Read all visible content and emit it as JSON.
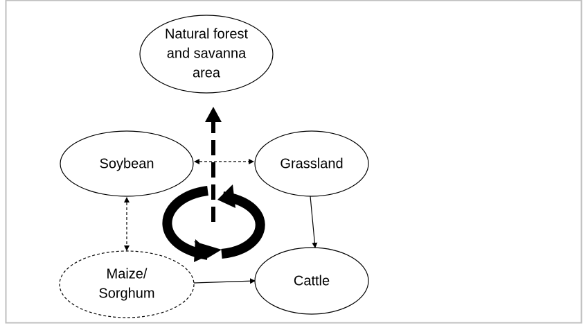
{
  "nodes": [
    {
      "lines": [
        "Natural forest",
        "and savanna",
        "area"
      ]
    },
    {
      "lines": [
        "Soybean"
      ]
    },
    {
      "lines": [
        "Grassland"
      ]
    },
    {
      "lines": [
        "Maize/",
        "Sorghum"
      ]
    },
    {
      "lines": [
        "Cattle"
      ]
    }
  ]
}
